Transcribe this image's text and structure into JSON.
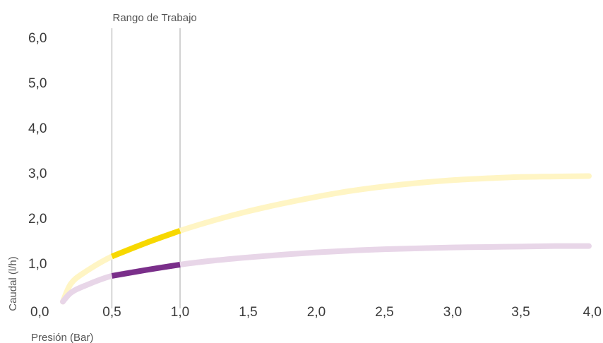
{
  "chart_data": {
    "type": "line",
    "xlabel": "Presión (Bar)",
    "ylabel": "Caudal (l/h)",
    "x_ticks": [
      "0,0",
      "0,5",
      "1,0",
      "1,5",
      "2,0",
      "2,5",
      "3,0",
      "3,5",
      "4,0"
    ],
    "y_ticks": [
      "1,0",
      "2,0",
      "3,0",
      "4,0",
      "5,0",
      "6,0"
    ],
    "xlim": [
      0,
      4
    ],
    "ylim": [
      0,
      6
    ],
    "grid": false,
    "annotation": {
      "label": "Rango de Trabajo",
      "x_start": 0.5,
      "x_end": 1.0
    },
    "series": [
      {
        "color": "#fff5c4",
        "highlight_color": "#f7d800",
        "x": [
          0.14,
          0.2,
          0.3,
          0.5,
          0.75,
          1.0,
          1.25,
          1.5,
          1.75,
          2.0,
          2.25,
          2.5,
          2.75,
          3.0,
          3.25,
          3.5,
          3.75,
          4.0
        ],
        "values": [
          0.15,
          0.55,
          0.8,
          1.15,
          1.45,
          1.72,
          1.95,
          2.15,
          2.32,
          2.47,
          2.6,
          2.7,
          2.78,
          2.84,
          2.88,
          2.91,
          2.92,
          2.93
        ]
      },
      {
        "color": "#e8d6e8",
        "highlight_color": "#7a2f8a",
        "x": [
          0.14,
          0.2,
          0.3,
          0.5,
          0.75,
          1.0,
          1.25,
          1.5,
          1.75,
          2.0,
          2.25,
          2.5,
          2.75,
          3.0,
          3.25,
          3.5,
          3.75,
          4.0
        ],
        "values": [
          0.15,
          0.35,
          0.5,
          0.72,
          0.85,
          0.97,
          1.06,
          1.13,
          1.19,
          1.24,
          1.28,
          1.31,
          1.33,
          1.35,
          1.36,
          1.37,
          1.38,
          1.38
        ]
      }
    ]
  }
}
